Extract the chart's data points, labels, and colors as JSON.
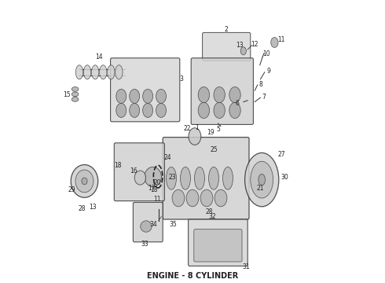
{
  "title": "ENGINE - 8 CYLINDER",
  "title_fontsize": 7,
  "title_style": "bold",
  "bg_color": "#ffffff",
  "line_color": "#333333",
  "label_color": "#222222",
  "label_fontsize": 5.5,
  "fig_width": 4.9,
  "fig_height": 3.6,
  "dpi": 100
}
